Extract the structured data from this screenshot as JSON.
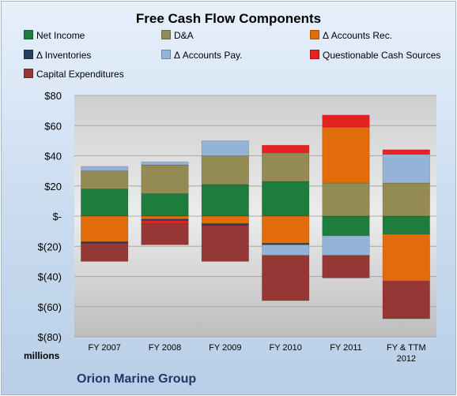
{
  "chart_data": {
    "type": "bar",
    "stacked": true,
    "title": "Free Cash Flow Components",
    "xlabel": "",
    "ylabel": "",
    "units_label": "millions",
    "ylim": [
      -80,
      80
    ],
    "yticks": [
      80,
      60,
      40,
      20,
      0,
      -20,
      -40,
      -60,
      -80
    ],
    "ytick_labels": [
      "$80",
      "$60",
      "$40",
      "$20",
      "$-",
      "$(20)",
      "$(40)",
      "$(60)",
      "$(80)"
    ],
    "categories": [
      "FY 2007",
      "FY 2008",
      "FY 2009",
      "FY 2010",
      "FY 2011",
      "FY & TTM 2012"
    ],
    "legend_position": "top",
    "series": [
      {
        "name": "Net Income",
        "color": "#1e7c3c",
        "values": [
          18,
          15,
          21,
          23,
          -13,
          -12
        ]
      },
      {
        "name": "D&A",
        "color": "#948a54",
        "values": [
          12,
          19,
          19,
          19,
          22,
          22
        ]
      },
      {
        "name": "Δ Accounts Rec.",
        "color": "#e36c0a",
        "values": [
          -17,
          -2,
          -5,
          -18,
          37,
          -31
        ]
      },
      {
        "name": "Δ Inventories",
        "color": "#243f60",
        "values": [
          -1,
          -1,
          -1,
          -1,
          0,
          0
        ]
      },
      {
        "name": "Δ Accounts Pay.",
        "color": "#95b3d7",
        "values": [
          3,
          2,
          10,
          -7,
          -13,
          19
        ]
      },
      {
        "name": "Questionable Cash Sources",
        "color": "#e32222",
        "values": [
          0,
          -2,
          0,
          5,
          8,
          3
        ]
      },
      {
        "name": "Capital Expenditures",
        "color": "#953735",
        "values": [
          -12,
          -14,
          -24,
          -30,
          -15,
          -25
        ]
      }
    ]
  },
  "footer": {
    "company": "Orion Marine Group"
  }
}
